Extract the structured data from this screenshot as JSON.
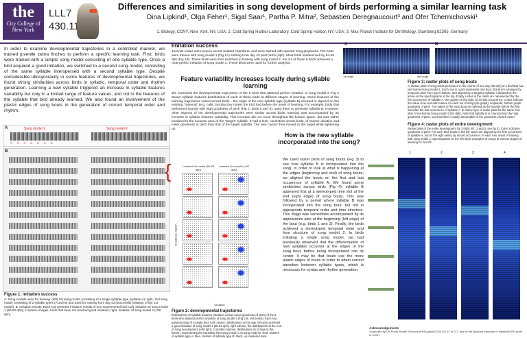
{
  "header": {
    "logo_the": "the",
    "logo_college": "City College of New York",
    "code_line1": "LLL7",
    "code_line2": "430.11",
    "title": "Differences and similarities in song development of birds performing a similar learning task",
    "authors": "Dina Lipkind¹, Olga Feher¹, Sigal Saar¹, Partha P. Mitra², Sebastien Deregnaucourt³ and Ofer Tchernichovski¹",
    "affiliations": "1. Biology, CCNY, New York, NY, USA; 2. Cold Spring Harbor Laboratory, Cold Spring Harbor, NY, USA; 3. Max Planck Institute for Ornithology, Starnberg 82305, Germany"
  },
  "intro": {
    "text": "In order to examine developmental trajectories in a controlled manner, we trained juvenile zebra finches to perform a specific learning task. First, birds were trained with a simple song model consisting of one syllable type. Once a bird acquired a good imitation, we switched to a second song model, consisting of the same syllable interspersed with a second syllable type. Despite considerable idiosyncracity in some features of developmental trajectories, we found strong similarities across birds in syllabic, temporal order and rhythm generation. Learning a new syllable triggered an increase in syllable features variability but only in a limited range of feature values, and not in the features of the syllable that bird already learned. We also found an involvement of the plastic edges of song bouts in the generation of correct temporal order and rhythm."
  },
  "figure1": {
    "panel_a": "A",
    "panel_b": "B",
    "song_model_1": "Song model 1",
    "song_model_2": "Song model 2",
    "letters": "A A A A A A A",
    "caption_title": "Figure 1: imitation success",
    "caption_text": "A: Song models used for training: (left) 1st song model consisting of a single syllable type (syllable A); right, 2nd song model consisting of 2 syllable types (A and B) and used for training from day 43 (successful imitation of the 1st model). B: Imitation results. Each row presents imitation results of one experimental bird. Left: imitation of song model 1 (50-60 dph); 2 sixteen images, birds that have not reached good imitation; right, imitation of song model 2 (>90 dph)."
  },
  "imitation": {
    "heading": "Imitation success",
    "text": "Juvenile males were kept in sound isolated chambers, and were trained with operant song playbacks. The birds were trained with song model 1 (Fig 1A) starting from day 43 post hatch (dph). Most birds imitated well by 54-58 dph (Fig 1B). These birds were then switched to training with song model 2. Six out of those 8 birds achieved a near-perfect imitation of song model 2. These birds were used for further analysis."
  },
  "feature_variability": {
    "heading": "Feature variability increases locally during syllable learning",
    "text": "We examined the developmental trajectories of the 6 birds that attained perfect imitation of song model 2. Fig 2 shows syllable features distributions of each of these birds at different stages of learning. Some features of the learning trajectories varied across birds – the origin of the new syllable type (syllable B) seemed to depend on the existing \"material\" (e.g. calls, introductory notes) the bird had before the onset of learning. For example, birds that performed sounds with high goodness of pitch (Fig 2, birds 5 and 6), used them to generate syllable B. However, other aspects of the developmental trajectories were similar across birds: learning was accompanied by an increase in syllable features variability. This increase did not occur throughout the feature space, but was rather localized to the acoustic area of the \"target\" syllable. It had a less, consistent across birds, of shorter duration and lower goodness of pitch than that of the target syllable. The new cluster then moved to the target while tightening up."
  },
  "figure2": {
    "col1_label": "Learned 1st model (50-55 dph)",
    "col2_label": "Learned 2nd model (>90 dph)",
    "ylabel": "Goodness of pitch",
    "xlabel": "Duration",
    "caption_title": "Figure 2: developmental trajectories",
    "caption_text": "Distributions of syllable features (duration versus mean goodness of pitch) of the 6 birds who attained perfect imitation of song model 2 (Fig 1 B, red boxes). Each row presents data of a single bird. Left column: distributions on the day the birds achieved a good imitation of song model 1 (50-55 dph); right column, the distributions at the end of song development (>90 dph); 2 middle columns, distributions on 2 days in the interim, representing the transition from song model 1 to song model 2. Red, clusters of syllable type A; blue, clusters of syllable type B; black, un-clustered data."
  },
  "new_syllable": {
    "heading": "How is the new syllable incorporated into the song?",
    "text": "We used raster plots of song bouts (Fig 3) to see how syllable B is incorporated into the song. In order to look at what is happening at the edges (beginning and end) of song bouts, we aligned the bouts on the first and last occurrence of syllable A. We found some similarities across birds (Fig 4): syllable B appeared first at a stereotyped time slot at the end (right edge) of song bouts. This was followed by a period where syllable B was incorporated into the song bout, but not in appropriate temporal order and time structure. This stage was sometimes accompanied by its appearance also at the beginning (left edge) of the bout (e.g. birds 1 and 3). Finally, the birds achieved a stereotyped temporal order and time structure of song model 2. In birds imitating a single song model, we had previously observed that the differentiation of new syllables occurred at the edges of the song bout, before being incorporated into its center. It may be that bouts use the more plastic edges of bouts in order to attain correct transition between syllable types, which is necessary for syntax and rhythm generation."
  },
  "figure3": {
    "panel_a": "A",
    "panel_b": "B",
    "first_edge": "1st edge",
    "last_edge": "last edge",
    "caption_title": "Figure 3: raster plots of song bouts",
    "caption_text": "A: Raster plots of song bouts performed in the course of one day (60 dph) of a bird that has just learned song model 1. Each row in a plot represents one bout. Bouts are arranged by temporal order from top to bottom, and aligned by a targeted syllable, indicated by the arrow on the spectrograms at the top. Empty circles in the raster are represented by the first occurrence of syllable A; the graphs on the right, by its last occurrence. Colors indicate the value of an acoustic feature for each ms of song (top graph), amplitude; bottom graph, goodness of pitch. The edges of the song bout are defined as the sounds before the first and after the last occurrence of syllable A. B: Same type of raster plots for the same bird after it has learned song model 2 (91 dph). Note that syllable B is characterized by high goodness of pitch, and therefore is easily discernable in the goodness of pitch raster."
  },
  "figure4": {
    "col_numbers": [
      "1",
      "2",
      "3",
      "4"
    ],
    "caption_title": "Figure 4: raster plots of entire development",
    "caption_text": "Raster plots of the entire development for 3 birds (#1, 3 and 5, see fig 2). Color indicates goodness of pitch. For each bird, bouts in the left raster are aligned by the first occurrence of syllable A, and in the right raster, by its last occurrence. In each row, onset of training with song model 2. Spectrograms on the left show examples of songs at various stages of learning for bird #1."
  },
  "acknowledgements": {
    "heading": "Acknowledgements",
    "text": "Supported by US Public Health Services (PHS) grant DC04722-07 to O.T. and by the National Institutes of Health/NCRR grant to CCNY."
  },
  "colors": {
    "brand": "#4a2f6e",
    "accent_red": "#d21e1e",
    "cluster_blue": "#2244dd"
  }
}
